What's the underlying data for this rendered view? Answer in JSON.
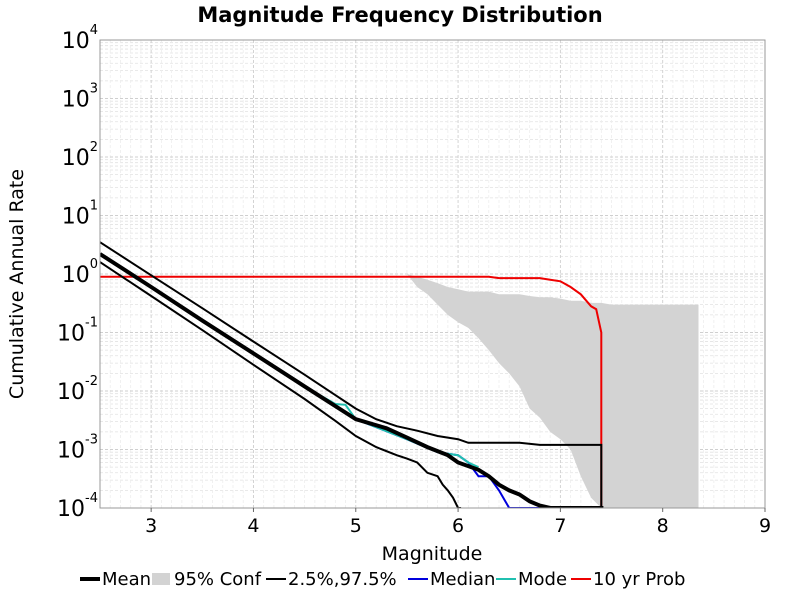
{
  "chart_data": {
    "type": "line",
    "title": "Magnitude Frequency Distribution",
    "xlabel": "Magnitude",
    "ylabel": "Cumulative Annual Rate",
    "xlim": [
      2.5,
      9
    ],
    "ylim": [
      0.0001,
      10000
    ],
    "yscale": "log",
    "grid": true,
    "legend_placement": "bottom",
    "x_ticks": [
      "3",
      "4",
      "5",
      "6",
      "7",
      "8",
      "9"
    ],
    "y_ticks": [
      {
        "base": "10",
        "exp": "-4"
      },
      {
        "base": "10",
        "exp": "-3"
      },
      {
        "base": "10",
        "exp": "-2"
      },
      {
        "base": "10",
        "exp": "-1"
      },
      {
        "base": "10",
        "exp": "0"
      },
      {
        "base": "10",
        "exp": "1"
      },
      {
        "base": "10",
        "exp": "2"
      },
      {
        "base": "10",
        "exp": "3"
      },
      {
        "base": "10",
        "exp": "4"
      }
    ],
    "legend": [
      {
        "label": "Mean",
        "color": "#000000",
        "kind": "line",
        "width": 4
      },
      {
        "label": "95% Conf",
        "color": "#d3d3d3",
        "kind": "band"
      },
      {
        "label": "2.5%,97.5%",
        "color": "#000000",
        "kind": "line",
        "width": 2
      },
      {
        "label": "Median",
        "color": "#0000dd",
        "kind": "line",
        "width": 2
      },
      {
        "label": "Mode",
        "color": "#20c0b0",
        "kind": "line",
        "width": 2
      },
      {
        "label": "10 yr Prob",
        "color": "#ee0000",
        "kind": "line",
        "width": 2
      }
    ],
    "band": {
      "name": "95% Conf",
      "color": "#d3d3d3",
      "x": [
        5.5,
        5.6,
        5.7,
        5.8,
        5.9,
        6.0,
        6.1,
        6.2,
        6.3,
        6.4,
        6.5,
        6.6,
        6.7,
        6.8,
        6.9,
        7.0,
        7.1,
        7.2,
        7.3,
        7.4,
        7.5,
        7.6,
        7.8,
        8.0,
        8.2,
        8.3,
        8.35
      ],
      "upper": [
        1.0,
        0.9,
        0.8,
        0.7,
        0.6,
        0.55,
        0.5,
        0.5,
        0.5,
        0.45,
        0.45,
        0.45,
        0.42,
        0.4,
        0.4,
        0.38,
        0.35,
        0.35,
        0.32,
        0.32,
        0.3,
        0.3,
        0.3,
        0.3,
        0.3,
        0.3,
        0.3
      ],
      "lower": [
        1.0,
        0.6,
        0.45,
        0.3,
        0.2,
        0.15,
        0.12,
        0.08,
        0.05,
        0.03,
        0.02,
        0.012,
        0.005,
        0.0035,
        0.002,
        0.0015,
        0.001,
        0.00035,
        0.00015,
        0.0001,
        0.0001,
        0.0001,
        0.0001,
        0.0001,
        0.0001,
        0.0001,
        0.0001
      ]
    },
    "series": [
      {
        "name": "10 yr Prob",
        "color": "#ee0000",
        "width": 2,
        "x": [
          2.5,
          6.3,
          6.4,
          6.7,
          6.8,
          6.9,
          7.0,
          7.1,
          7.2,
          7.3,
          7.35,
          7.4,
          7.4
        ],
        "y": [
          0.9,
          0.9,
          0.85,
          0.85,
          0.85,
          0.8,
          0.75,
          0.6,
          0.45,
          0.28,
          0.25,
          0.1,
          0.0001
        ]
      },
      {
        "name": "2.5%,97.5%",
        "color": "#000000",
        "width": 2,
        "x": [
          2.5,
          3.0,
          3.5,
          4.0,
          4.5,
          4.8,
          5.0,
          5.2,
          5.4,
          5.5,
          5.6,
          5.7,
          5.8,
          5.85,
          5.9,
          5.95,
          6.0,
          6.03,
          6.03
        ],
        "y": [
          1.6,
          0.42,
          0.11,
          0.028,
          0.0073,
          0.0031,
          0.0017,
          0.0011,
          0.0008,
          0.0007,
          0.0006,
          0.0004,
          0.00035,
          0.00025,
          0.0002,
          0.00015,
          0.0001,
          0.0001,
          0.0001
        ]
      },
      {
        "name": "2.5%,97.5% upper",
        "color": "#000000",
        "width": 2,
        "x": [
          2.5,
          3.0,
          3.5,
          4.0,
          4.5,
          4.8,
          5.0,
          5.2,
          5.4,
          5.6,
          5.8,
          6.0,
          6.1,
          6.2,
          6.3,
          6.4,
          6.6,
          6.8,
          7.0,
          7.05,
          7.2,
          7.3,
          7.4,
          7.4
        ],
        "y": [
          3.5,
          0.95,
          0.26,
          0.07,
          0.019,
          0.0085,
          0.005,
          0.0033,
          0.0025,
          0.0021,
          0.0017,
          0.0015,
          0.0013,
          0.0013,
          0.0013,
          0.0013,
          0.0013,
          0.0012,
          0.0012,
          0.0012,
          0.0012,
          0.0012,
          0.0012,
          0.0001
        ]
      },
      {
        "name": "Median",
        "color": "#0000dd",
        "width": 2,
        "x": [
          2.5,
          3.0,
          3.5,
          4.0,
          4.5,
          5.0,
          5.5,
          5.8,
          6.0,
          6.1,
          6.2,
          6.3,
          6.4,
          6.5,
          6.6,
          6.8,
          7.0,
          7.1,
          7.12,
          7.12
        ],
        "y": [
          2.2,
          0.6,
          0.16,
          0.044,
          0.012,
          0.0033,
          0.0015,
          0.0009,
          0.0008,
          0.0006,
          0.00035,
          0.00035,
          0.0002,
          0.0001,
          0.0001,
          0.0001,
          0.0001,
          0.0001,
          0.0001,
          0.0001
        ]
      },
      {
        "name": "Mode",
        "color": "#20c0b0",
        "width": 2,
        "x": [
          2.5,
          3.0,
          3.5,
          4.0,
          4.5,
          4.8,
          4.9,
          5.0,
          5.5,
          5.8,
          6.0,
          6.1,
          6.2
        ],
        "y": [
          2.2,
          0.6,
          0.16,
          0.044,
          0.012,
          0.006,
          0.0058,
          0.0033,
          0.0015,
          0.0009,
          0.0008,
          0.0006,
          0.0005
        ]
      },
      {
        "name": "Mean",
        "color": "#000000",
        "width": 4,
        "x": [
          2.5,
          3.0,
          3.5,
          4.0,
          4.5,
          5.0,
          5.3,
          5.5,
          5.7,
          5.9,
          6.0,
          6.2,
          6.3,
          6.4,
          6.5,
          6.6,
          6.7,
          6.8,
          6.9,
          7.0,
          7.1,
          7.2,
          7.3,
          7.4,
          7.42
        ],
        "y": [
          2.2,
          0.6,
          0.16,
          0.044,
          0.012,
          0.0033,
          0.0023,
          0.0016,
          0.0011,
          0.0008,
          0.0006,
          0.00045,
          0.00035,
          0.00025,
          0.0002,
          0.00017,
          0.00013,
          0.00011,
          0.0001,
          0.0001,
          0.0001,
          0.0001,
          0.0001,
          0.0001,
          0.0001
        ]
      }
    ]
  }
}
